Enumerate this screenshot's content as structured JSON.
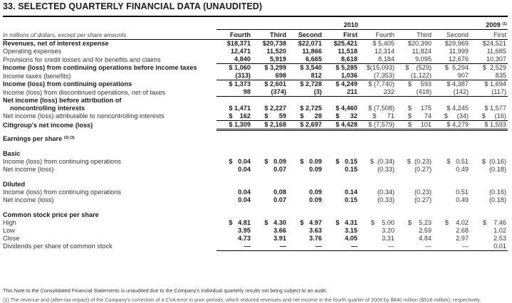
{
  "title": "33. SELECTED QUARTERLY FINANCIAL DATA (UNAUDITED)",
  "years": {
    "y2010": "2010",
    "y2009": "2009",
    "y2009_sup": "(1)"
  },
  "units_note": "In millions of dollars, except per share amounts",
  "columns": [
    "Fourth",
    "Third",
    "Second",
    "First",
    "Fourth",
    "Third",
    "Second",
    "First"
  ],
  "rows": [
    {
      "label": "Revenues, net of interest expense",
      "bold": true,
      "values": [
        "$18,371",
        "$20,738",
        "$22,071",
        "$25,421",
        "$ 5,405",
        "$20,390",
        "$29,969",
        "$24,521"
      ]
    },
    {
      "label": "Operating expenses",
      "bold": false,
      "values": [
        "12,471",
        "11,520",
        "11,866",
        "11,518",
        "12,314",
        "11,824",
        "11,999",
        "11,685"
      ]
    },
    {
      "label": "Provisions for credit losses and for benefits and claims",
      "bold": false,
      "values": [
        "4,840",
        "5,919",
        "6,665",
        "8,618",
        "8,184",
        "9,095",
        "12,676",
        "10,307"
      ]
    },
    {
      "label": "Income (loss) from continuing operations before income taxes",
      "bold": true,
      "values": [
        "$ 1,060",
        "$ 3,299",
        "$ 3,540",
        "$ 5,285",
        "$(15,093)",
        "$    (529)",
        "$  5,294",
        "$  2,529"
      ]
    },
    {
      "label": "Income taxes (benefits)",
      "bold": false,
      "values": [
        "(313)",
        "698",
        "812",
        "1,036",
        "(7,353)",
        "(1,122)",
        "907",
        "835"
      ]
    },
    {
      "label": "Income (loss) from continuing operations",
      "bold": true,
      "values": [
        "$ 1,373",
        "$ 2,601",
        "$ 2,728",
        "$ 4,249",
        "$ (7,740)",
        "$     593",
        "$ 4,387",
        "$ 1,694"
      ]
    },
    {
      "label": "Income (loss) from discontinued operations, net of taxes",
      "bold": false,
      "values": [
        "98",
        "(374)",
        "(3)",
        "211",
        "232",
        "(418)",
        "(142)",
        "(117)"
      ]
    },
    {
      "label": "Net income (loss) before attribution of",
      "bold": true,
      "values": [
        "",
        "",
        "",
        "",
        "",
        "",
        "",
        ""
      ]
    },
    {
      "label": "noncontrolling interests",
      "bold": true,
      "indent": true,
      "values": [
        "$ 1,471",
        "$ 2,227",
        "$ 2,725",
        "$ 4,460",
        "$ (7,508)",
        "$     175",
        "$ 4,245",
        "$ 1,577"
      ]
    },
    {
      "label": "Net income (loss) attributable to noncontrolling interests",
      "bold": false,
      "values": [
        "$    162",
        "$      59",
        "$      28",
        "$      32",
        "$      71",
        "$       74",
        "$     (34)",
        "$     (16)"
      ]
    },
    {
      "label": "Citigroup's net income (loss)",
      "bold": true,
      "values": [
        "$ 1,309",
        "$ 2,168",
        "$ 2,697",
        "$ 4,428",
        "$ (7,579)",
        "$     101",
        "$ 4,279",
        "$ 1,593"
      ]
    }
  ],
  "eps_header": "Earnings per share",
  "eps_header_sup": "(2) (3)",
  "basic": {
    "label": "Basic",
    "rows": [
      {
        "label": "Income (loss) from continuing operations",
        "values": [
          "$   0.04",
          "$   0.09",
          "$   0.09",
          "$   0.15",
          "$  (0.34)",
          "$  (0.23)",
          "$   0.51",
          "$  (0.16)"
        ]
      },
      {
        "label": "Net income (loss)",
        "values": [
          "0.04",
          "0.07",
          "0.09",
          "0.15",
          "(0.33)",
          "(0.27)",
          "0.49",
          "(0.18)"
        ]
      }
    ]
  },
  "diluted": {
    "label": "Diluted",
    "rows": [
      {
        "label": "Income (loss) from continuing operations",
        "values": [
          "0.04",
          "0.08",
          "0.09",
          "0.14",
          "(0.34)",
          "(0.23)",
          "0.51",
          "(0.16)"
        ]
      },
      {
        "label": "Net income (loss)",
        "values": [
          "0.04",
          "0.07",
          "0.09",
          "0.15",
          "(0.33)",
          "(0.27)",
          "0.49",
          "(0.18)"
        ]
      }
    ]
  },
  "stock": {
    "label": "Common stock price per share",
    "rows": [
      {
        "label": "High",
        "values": [
          "$   4.81",
          "$   4.30",
          "$   4.97",
          "$   4.31",
          "$    5.00",
          "$    5.23",
          "$    4.02",
          "$    7.46"
        ]
      },
      {
        "label": "Low",
        "values": [
          "3.95",
          "3.66",
          "3.63",
          "3.15",
          "3.20",
          "2.59",
          "2.68",
          "1.02"
        ]
      },
      {
        "label": "Close",
        "values": [
          "4.73",
          "3.91",
          "3.76",
          "4.05",
          "3.31",
          "4.84",
          "2.97",
          "2.53"
        ]
      },
      {
        "label": "Dividends per share of common stock",
        "values": [
          "—",
          "—",
          "—",
          "—",
          "—",
          "—",
          "—",
          "0.01"
        ]
      }
    ]
  },
  "footnote": "This Note to the Consolidated Financial Statements is unaudited due to the Company's individual quarterly results not being subject to an audit.",
  "footnote2": "(1)   The revenue and (after-tax impact) of the Company's correction of a CVA error in prior periods, which reduced revenues and net income in the fourth quarter of 2009 by $840 million ($518 million), respectively."
}
